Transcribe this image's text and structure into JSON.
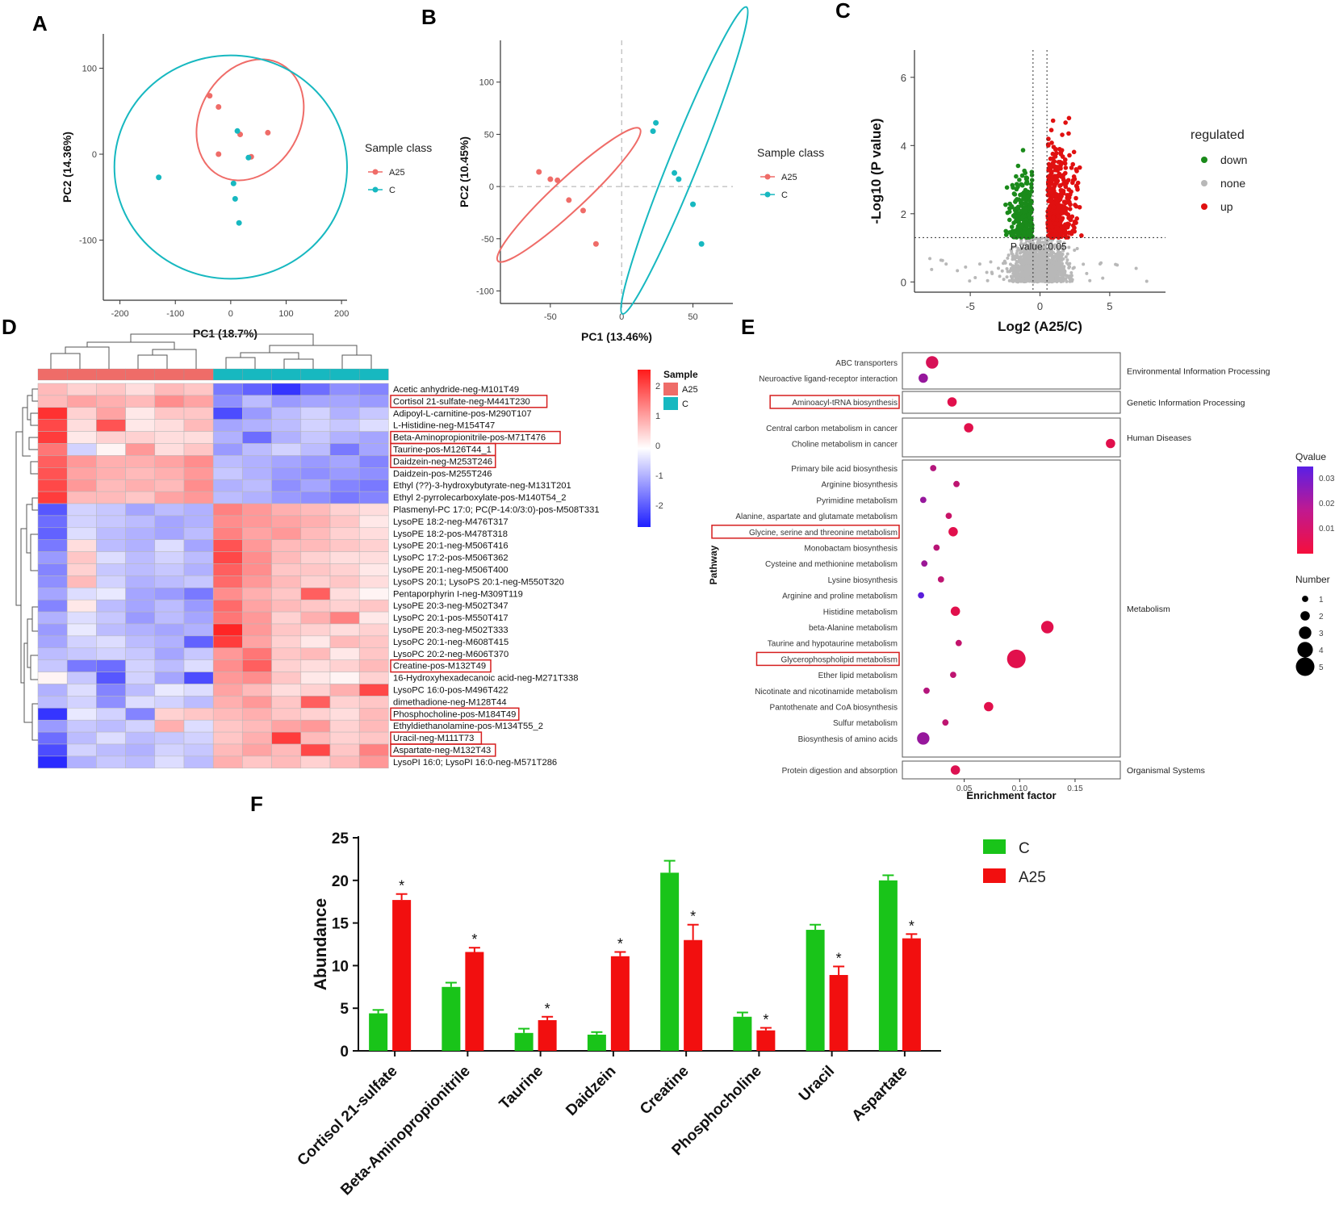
{
  "colors": {
    "a25": "#ef6c68",
    "c": "#17b8c0",
    "down": "#1a8a1a",
    "none": "#b8b8b8",
    "up": "#e01010",
    "barC": "#19c419",
    "barA25": "#f20f0f",
    "heatHigh": "#ff1a1a",
    "heatLow": "#1f1fff",
    "redBox": "#d61f1f"
  },
  "panels": {
    "A": "A",
    "B": "B",
    "C": "C",
    "D": "D",
    "E": "E",
    "F": "F"
  },
  "chart_data": [
    {
      "id": "A",
      "type": "scatter",
      "xlabel": "PC1 (18.7%)",
      "ylabel": "PC2 (14.36%)",
      "xticks": [
        -200,
        -100,
        0,
        100,
        200
      ],
      "yticks": [
        100,
        0,
        -100
      ],
      "xlim": [
        -230,
        210
      ],
      "ylim": [
        -170,
        140
      ],
      "legend": {
        "title": "Sample class",
        "entries": [
          "A25",
          "C"
        ],
        "position": "right"
      },
      "series": [
        {
          "name": "A25",
          "points": [
            [
              -38,
              68
            ],
            [
              -22,
              55
            ],
            [
              -22,
              0
            ],
            [
              17,
              23
            ],
            [
              37,
              -3
            ],
            [
              67,
              25
            ]
          ]
        },
        {
          "name": "C",
          "points": [
            [
              -130,
              -27
            ],
            [
              12,
              27
            ],
            [
              32,
              -4
            ],
            [
              5,
              -34
            ],
            [
              8,
              -52
            ],
            [
              15,
              -80
            ]
          ]
        }
      ],
      "ellipses": [
        {
          "name": "A25",
          "center": [
            35,
            40
          ],
          "rx": 115,
          "ry": 58,
          "angle": -60
        },
        {
          "name": "C",
          "center": [
            0,
            -15
          ],
          "rx": 210,
          "ry": 130,
          "angle": 0
        }
      ]
    },
    {
      "id": "B",
      "type": "scatter",
      "xlabel": "PC1 (13.46%)",
      "ylabel": "PC2 (10.45%)",
      "xticks": [
        -50,
        0,
        50
      ],
      "yticks": [
        100,
        50,
        0,
        -50,
        -100
      ],
      "xlim": [
        -85,
        78
      ],
      "ylim": [
        -112,
        140
      ],
      "legend": {
        "title": "Sample class",
        "entries": [
          "A25",
          "C"
        ],
        "position": "right"
      },
      "series": [
        {
          "name": "A25",
          "points": [
            [
              -58,
              14
            ],
            [
              -50,
              7
            ],
            [
              -45,
              6
            ],
            [
              -37,
              -13
            ],
            [
              -27,
              -23
            ],
            [
              -18,
              -55
            ]
          ]
        },
        {
          "name": "C",
          "points": [
            [
              22,
              53
            ],
            [
              24,
              61
            ],
            [
              37,
              13
            ],
            [
              40,
              7
            ],
            [
              50,
              -17
            ],
            [
              56,
              -55
            ]
          ]
        }
      ],
      "ellipses": [
        {
          "name": "A25",
          "center": [
            -37,
            -8
          ],
          "rx": 68,
          "ry": 15,
          "angle": -43
        },
        {
          "name": "C",
          "center": [
            44,
            25
          ],
          "rx": 116,
          "ry": 14,
          "angle": -68
        }
      ]
    },
    {
      "id": "C",
      "type": "scatter",
      "xlabel": "Log2 (A25/C)",
      "ylabel": "-Log10 (P value)",
      "xticks": [
        -5,
        0,
        5
      ],
      "yticks": [
        0,
        2,
        4,
        6
      ],
      "xlim": [
        -9,
        9
      ],
      "ylim": [
        -0.3,
        6.8
      ],
      "threshold_label": "P value: 0.05",
      "legend": {
        "title": "regulated",
        "entries": [
          "down",
          "none",
          "up"
        ],
        "position": "right"
      }
    },
    {
      "id": "D",
      "type": "heatmap",
      "legend": {
        "title": "Sample",
        "entries": [
          "A25",
          "C"
        ]
      },
      "colorbar_ticks": [
        "2",
        "1",
        "0",
        "-1",
        "-2"
      ],
      "groups": [
        "A25",
        "A25",
        "A25",
        "A25",
        "A25",
        "A25",
        "C",
        "C",
        "C",
        "C",
        "C",
        "C"
      ],
      "rows": [
        "Acetic anhydride-neg-M101T49",
        "Cortisol 21-sulfate-neg-M441T230",
        "Adipoyl-L-carnitine-pos-M290T107",
        "L-Histidine-neg-M154T47",
        "Beta-Aminopropionitrile-pos-M71T476",
        "Taurine-pos-M126T44_1",
        "Daidzein-neg-M253T246",
        "Daidzein-pos-M255T246",
        "Ethyl (??)-3-hydroxybutyrate-neg-M131T201",
        "Ethyl 2-pyrrolecarboxylate-pos-M140T54_2",
        "Plasmenyl-PC 17:0; PC(P-14:0/3:0)-pos-M508T331",
        "LysoPE 18:2-neg-M476T317",
        "LysoPE 18:2-pos-M478T318",
        "LysoPE 20:1-neg-M506T416",
        "LysoPC 17:2-pos-M506T362",
        "LysoPE 20:1-neg-M506T400",
        "LysoPS 20:1; LysoPS 20:1-neg-M550T320",
        "Pentaporphyrin I-neg-M309T119",
        "LysoPE 20:3-neg-M502T347",
        "LysoPC 20:1-pos-M550T417",
        "LysoPE 20:3-neg-M502T333",
        "LysoPC 20:1-neg-M608T415",
        "LysoPC 20:2-neg-M606T370",
        "Creatine-pos-M132T49",
        "16-Hydroxyhexadecanoic acid-neg-M271T338",
        "LysoPC 16:0-pos-M496T422",
        "dimethadione-neg-M128T44",
        "Phosphocholine-pos-M184T49",
        "Ethyldiethanolamine-pos-M134T55_2",
        "Uracil-neg-M111T73",
        "Aspartate-neg-M132T43",
        "LysoPI 16:0; LysoPI 16:0-neg-M571T286"
      ],
      "highlighted_rows": [
        1,
        4,
        5,
        6,
        23,
        27,
        29,
        30
      ],
      "values": [
        [
          0.6,
          0.4,
          0.5,
          0.3,
          0.6,
          0.5,
          -1.2,
          -1.4,
          -1.8,
          -1.3,
          -1.0,
          -1.1
        ],
        [
          0.6,
          0.8,
          0.7,
          0.6,
          1.0,
          0.8,
          -1.0,
          -0.6,
          -0.9,
          -0.8,
          -0.8,
          -0.9
        ],
        [
          1.8,
          0.4,
          0.8,
          0.2,
          0.5,
          0.5,
          -1.6,
          -0.9,
          -0.6,
          -0.4,
          -0.7,
          -0.5
        ],
        [
          1.6,
          0.3,
          1.5,
          0.2,
          0.3,
          0.6,
          -0.8,
          -0.7,
          -0.6,
          -0.4,
          -0.5,
          -0.3
        ],
        [
          1.7,
          0.2,
          0.4,
          0.4,
          0.3,
          0.3,
          -0.7,
          -1.3,
          -0.7,
          -0.5,
          -0.7,
          -0.8
        ],
        [
          1.2,
          -0.4,
          0.1,
          0.9,
          0.3,
          0.5,
          -0.9,
          -0.6,
          -0.4,
          -0.6,
          -1.2,
          -0.8
        ],
        [
          1.4,
          0.9,
          0.7,
          0.7,
          0.8,
          1.0,
          -0.6,
          -0.7,
          -0.8,
          -0.9,
          -0.8,
          -1.1
        ],
        [
          1.5,
          0.8,
          0.7,
          0.6,
          0.7,
          0.9,
          -0.5,
          -0.7,
          -0.9,
          -1.0,
          -0.9,
          -1.0
        ],
        [
          1.6,
          0.9,
          0.6,
          0.7,
          0.6,
          1.0,
          -0.7,
          -0.6,
          -1.0,
          -0.8,
          -1.1,
          -1.2
        ],
        [
          1.7,
          0.6,
          0.6,
          0.5,
          0.8,
          0.9,
          -0.6,
          -0.7,
          -0.9,
          -1.0,
          -1.2,
          -1.1
        ],
        [
          -1.5,
          -0.4,
          -0.5,
          -0.8,
          -0.6,
          -0.7,
          1.1,
          0.9,
          0.7,
          0.6,
          0.4,
          0.3
        ],
        [
          -1.3,
          -0.4,
          -0.5,
          -0.6,
          -0.8,
          -0.7,
          1.0,
          0.9,
          0.8,
          0.7,
          0.5,
          0.2
        ],
        [
          -1.4,
          -0.3,
          -0.6,
          -0.7,
          -0.8,
          -0.6,
          1.1,
          0.8,
          0.9,
          0.6,
          0.4,
          0.3
        ],
        [
          -1.2,
          0.3,
          -0.6,
          -0.7,
          -0.3,
          -0.8,
          1.5,
          0.9,
          0.6,
          0.6,
          0.5,
          0.4
        ],
        [
          -0.9,
          0.5,
          -0.3,
          -0.6,
          -0.4,
          -0.6,
          1.6,
          1.0,
          0.6,
          0.4,
          0.3,
          0.3
        ],
        [
          -1.1,
          0.4,
          -0.5,
          -0.6,
          -0.5,
          -0.7,
          1.4,
          1.0,
          0.5,
          0.5,
          0.4,
          0.2
        ],
        [
          -1.0,
          0.6,
          -0.4,
          -0.7,
          -0.6,
          -0.5,
          1.3,
          0.9,
          0.6,
          0.4,
          0.5,
          0.3
        ],
        [
          -0.8,
          -0.3,
          -0.2,
          -0.8,
          -0.9,
          -1.2,
          1.0,
          0.7,
          0.5,
          1.4,
          0.3,
          0.1
        ],
        [
          -1.1,
          0.2,
          -0.6,
          -0.8,
          -0.6,
          -0.9,
          1.3,
          0.8,
          0.6,
          0.5,
          0.4,
          0.5
        ],
        [
          -0.7,
          -0.3,
          -0.5,
          -0.9,
          -0.6,
          -0.8,
          1.2,
          0.9,
          0.4,
          0.7,
          1.1,
          0.2
        ],
        [
          -0.9,
          -0.2,
          -0.6,
          -0.7,
          -0.8,
          -0.7,
          1.9,
          0.9,
          0.5,
          0.4,
          0.3,
          0.4
        ],
        [
          -0.8,
          -0.4,
          -0.3,
          -0.6,
          -0.7,
          -1.4,
          1.7,
          0.8,
          0.4,
          0.2,
          0.6,
          0.5
        ],
        [
          -0.6,
          -0.5,
          -0.4,
          -0.5,
          -0.8,
          -0.5,
          0.9,
          1.2,
          0.5,
          0.6,
          0.2,
          0.5
        ],
        [
          -0.5,
          -1.2,
          -1.3,
          -0.4,
          -0.6,
          -0.3,
          1.0,
          1.4,
          0.4,
          0.3,
          0.4,
          0.6
        ],
        [
          0.1,
          -0.5,
          -1.5,
          -0.4,
          -0.8,
          -1.6,
          0.9,
          1.0,
          0.5,
          0.2,
          0.1,
          0.4
        ],
        [
          -0.7,
          -0.3,
          -1.1,
          -0.6,
          -0.2,
          -0.3,
          0.8,
          0.6,
          0.3,
          0.4,
          0.7,
          1.6
        ],
        [
          -0.6,
          -0.4,
          -1.0,
          -0.3,
          -0.4,
          -0.6,
          0.7,
          0.9,
          0.5,
          1.4,
          0.4,
          0.5
        ],
        [
          -1.8,
          -0.2,
          -0.4,
          -1.1,
          0.4,
          0.5,
          0.6,
          0.7,
          0.5,
          0.4,
          0.3,
          0.6
        ],
        [
          -0.9,
          -0.5,
          -0.6,
          -0.4,
          0.7,
          -0.3,
          0.5,
          0.6,
          0.8,
          0.9,
          0.4,
          0.6
        ],
        [
          -1.3,
          -0.6,
          -0.3,
          -0.6,
          -0.5,
          -0.4,
          0.5,
          0.7,
          1.7,
          0.6,
          0.4,
          0.5
        ],
        [
          -1.6,
          -0.4,
          -0.6,
          -0.7,
          -0.4,
          -0.5,
          0.6,
          0.8,
          0.6,
          1.6,
          0.5,
          1.1
        ],
        [
          -1.9,
          -0.7,
          -0.5,
          -0.6,
          -0.3,
          -0.6,
          0.7,
          0.5,
          0.6,
          0.4,
          0.6,
          0.9
        ]
      ]
    },
    {
      "id": "E",
      "type": "scatter",
      "xlabel": "Enrichment factor",
      "ylabel": "Pathway",
      "xticks": [
        "0.05",
        "0.10",
        "0.15"
      ],
      "xlim": [
        0,
        0.185
      ],
      "legend_q": {
        "title": "Qvalue",
        "ticks": [
          "0.03",
          "0.02",
          "0.01"
        ]
      },
      "legend_n": {
        "title": "Number",
        "ticks": [
          "1",
          "2",
          "3",
          "4",
          "5"
        ]
      },
      "groups": [
        {
          "name": "Environmental Information Processing",
          "pathways": [
            {
              "name": "ABC transporters",
              "x": 0.021,
              "n": 3,
              "q": 0.005
            },
            {
              "name": "Neuroactive ligand-receptor interaction",
              "x": 0.013,
              "n": 2,
              "q": 0.018
            }
          ]
        },
        {
          "name": "Genetic Information Processing",
          "pathways": [
            {
              "name": "Aminoacyl-tRNA biosynthesis",
              "x": 0.039,
              "n": 2,
              "q": 0.003,
              "highlight": true
            }
          ]
        },
        {
          "name": "Human Diseases",
          "pathways": [
            {
              "name": "Central carbon metabolism in cancer",
              "x": 0.054,
              "n": 2,
              "q": 0.003
            },
            {
              "name": "Choline metabolism in cancer",
              "x": 0.182,
              "n": 2,
              "q": 0.003
            }
          ]
        },
        {
          "name": "Metabolism",
          "pathways": [
            {
              "name": "Primary bile acid biosynthesis",
              "x": 0.022,
              "n": 1,
              "q": 0.012
            },
            {
              "name": "Arginine biosynthesis",
              "x": 0.043,
              "n": 1,
              "q": 0.01
            },
            {
              "name": "Pyrimidine metabolism",
              "x": 0.013,
              "n": 1,
              "q": 0.018
            },
            {
              "name": "Alanine, aspartate and glutamate metabolism",
              "x": 0.036,
              "n": 1,
              "q": 0.008
            },
            {
              "name": "Glycine, serine and threonine metabolism",
              "x": 0.04,
              "n": 2,
              "q": 0.003,
              "highlight": true
            },
            {
              "name": "Monobactam biosynthesis",
              "x": 0.025,
              "n": 1,
              "q": 0.011
            },
            {
              "name": "Cysteine and methionine metabolism",
              "x": 0.014,
              "n": 1,
              "q": 0.017
            },
            {
              "name": "Lysine biosynthesis",
              "x": 0.029,
              "n": 1,
              "q": 0.01
            },
            {
              "name": "Arginine and proline metabolism",
              "x": 0.011,
              "n": 1,
              "q": 0.03
            },
            {
              "name": "Histidine metabolism",
              "x": 0.042,
              "n": 2,
              "q": 0.003
            },
            {
              "name": "beta-Alanine metabolism",
              "x": 0.125,
              "n": 3,
              "q": 0.003
            },
            {
              "name": "Taurine and hypotaurine metabolism",
              "x": 0.045,
              "n": 1,
              "q": 0.009
            },
            {
              "name": "Glycerophospholipid metabolism",
              "x": 0.097,
              "n": 5,
              "q": 0.003,
              "highlight": true
            },
            {
              "name": "Ether lipid metabolism",
              "x": 0.04,
              "n": 1,
              "q": 0.01
            },
            {
              "name": "Nicotinate and nicotinamide metabolism",
              "x": 0.016,
              "n": 1,
              "q": 0.012
            },
            {
              "name": "Pantothenate and CoA biosynthesis",
              "x": 0.072,
              "n": 2,
              "q": 0.003
            },
            {
              "name": "Sulfur metabolism",
              "x": 0.033,
              "n": 1,
              "q": 0.01
            },
            {
              "name": "Biosynthesis of amino acids",
              "x": 0.013,
              "n": 3,
              "q": 0.018
            }
          ]
        },
        {
          "name": "Organismal Systems",
          "pathways": [
            {
              "name": "Protein digestion and absorption",
              "x": 0.042,
              "n": 2,
              "q": 0.004
            }
          ]
        }
      ]
    },
    {
      "id": "F",
      "type": "bar",
      "ylabel": "Abundance",
      "ylim": [
        0,
        25
      ],
      "yticks": [
        0,
        5,
        10,
        15,
        20,
        25
      ],
      "categories": [
        "Cortisol 21-sulfate",
        "Beta-Aminopropionitrile",
        "Taurine",
        "Daidzein",
        "Creatine",
        "Phosphocholine",
        "Uracil",
        "Aspartate"
      ],
      "series": [
        {
          "name": "C",
          "values": [
            4.4,
            7.5,
            2.1,
            1.9,
            20.9,
            4.0,
            14.2,
            20.0
          ],
          "errors": [
            0.4,
            0.5,
            0.5,
            0.3,
            1.4,
            0.5,
            0.6,
            0.6
          ]
        },
        {
          "name": "A25",
          "values": [
            17.7,
            11.6,
            3.6,
            11.1,
            13.0,
            2.4,
            8.9,
            13.2
          ],
          "errors": [
            0.7,
            0.5,
            0.4,
            0.5,
            1.8,
            0.3,
            1.0,
            0.5
          ]
        }
      ],
      "significance": "*",
      "legend": {
        "entries": [
          "C",
          "A25"
        ],
        "position": "top-right"
      }
    }
  ]
}
